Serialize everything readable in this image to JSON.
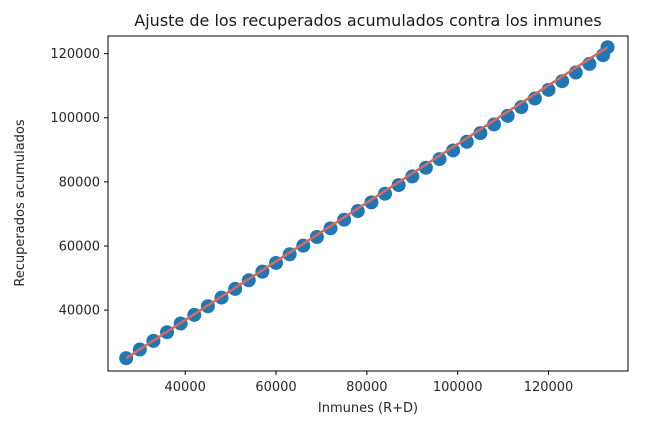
{
  "chart_data": {
    "type": "scatter",
    "title": "Ajuste de los recuperados acumulados contra los inmunes",
    "xlabel": "Inmunes (R+D)",
    "ylabel": "Recuperados acumulados",
    "xlim": [
      23000,
      137500
    ],
    "ylim": [
      21000,
      125500
    ],
    "xticks": [
      40000,
      60000,
      80000,
      100000,
      120000
    ],
    "yticks": [
      40000,
      60000,
      80000,
      100000,
      120000
    ],
    "grid": false,
    "colors": {
      "points": "#1f77b4",
      "fit": "#d9685f"
    },
    "series": [
      {
        "x": [
          27000,
          30000,
          33000,
          36000,
          39000,
          42000,
          45000,
          48000,
          51000,
          54000,
          57000,
          60000,
          63000,
          66000,
          69000,
          72000,
          75000,
          78000,
          81000,
          84000,
          87000,
          90000,
          93000,
          96000,
          99000,
          102000,
          105000,
          108000,
          111000,
          114000,
          117000,
          120000,
          123000,
          126000,
          129000,
          132000,
          133000
        ],
        "y": [
          25000,
          27700,
          30400,
          33100,
          35800,
          38500,
          41200,
          43900,
          46600,
          49300,
          52000,
          54700,
          57400,
          60100,
          62800,
          65500,
          68200,
          70900,
          73600,
          76300,
          79000,
          81700,
          84400,
          87100,
          89800,
          92500,
          95200,
          97900,
          100600,
          103300,
          106000,
          108700,
          111400,
          114100,
          116800,
          119500,
          122000
        ]
      }
    ],
    "fit": {
      "x": [
        27000,
        133000
      ],
      "y": [
        25000,
        122000
      ]
    }
  }
}
